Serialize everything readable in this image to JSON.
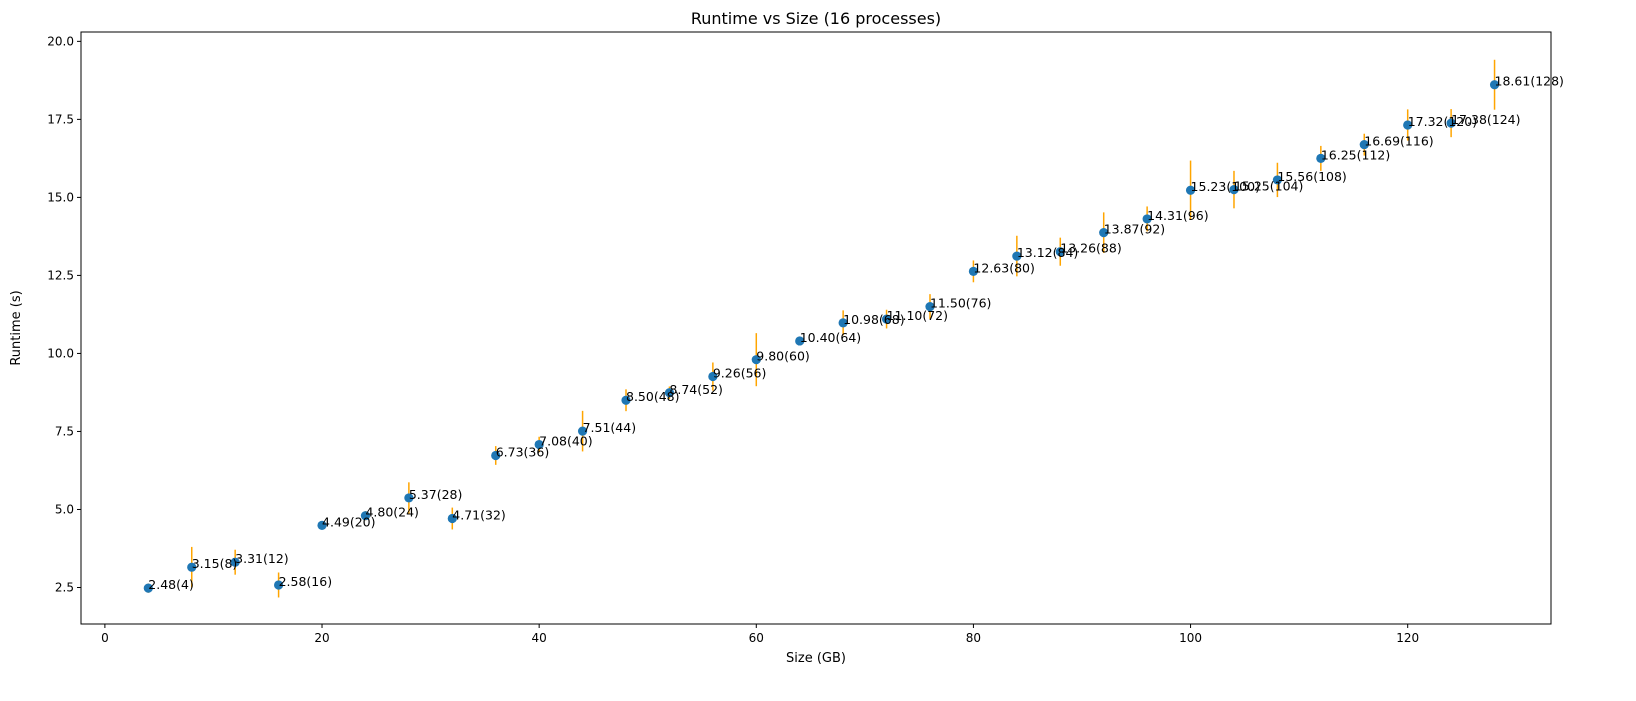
{
  "chart_data": {
    "type": "scatter",
    "title": "Runtime vs Size (16 processes)",
    "xlabel": "Size (GB)",
    "ylabel": "Runtime (s)",
    "xlim": [
      -2.2,
      133.2
    ],
    "ylim": [
      1.33,
      20.3
    ],
    "xticks": [
      0,
      20,
      40,
      60,
      80,
      100,
      120
    ],
    "yticks": [
      2.5,
      5.0,
      7.5,
      10.0,
      12.5,
      15.0,
      17.5,
      20.0
    ],
    "xtick_labels": [
      "0",
      "20",
      "40",
      "60",
      "80",
      "100",
      "120"
    ],
    "ytick_labels": [
      "2.5",
      "5.0",
      "7.5",
      "10.0",
      "12.5",
      "15.0",
      "17.5",
      "20.0"
    ],
    "grid": false,
    "marker_color": "#1f77b4",
    "errorbar_color": "#ffa500",
    "points": [
      {
        "x": 4,
        "y": 2.48,
        "err": 0.15,
        "label": "2.48(4)"
      },
      {
        "x": 8,
        "y": 3.15,
        "err": 0.65,
        "label": "3.15(8)"
      },
      {
        "x": 12,
        "y": 3.31,
        "err": 0.4,
        "label": "3.31(12)"
      },
      {
        "x": 16,
        "y": 2.58,
        "err": 0.4,
        "label": "2.58(16)"
      },
      {
        "x": 20,
        "y": 4.49,
        "err": 0.1,
        "label": "4.49(20)"
      },
      {
        "x": 24,
        "y": 4.8,
        "err": 0.15,
        "label": "4.80(24)"
      },
      {
        "x": 28,
        "y": 5.37,
        "err": 0.5,
        "label": "5.37(28)"
      },
      {
        "x": 32,
        "y": 4.71,
        "err": 0.35,
        "label": "4.71(32)"
      },
      {
        "x": 36,
        "y": 6.73,
        "err": 0.3,
        "label": "6.73(36)"
      },
      {
        "x": 40,
        "y": 7.08,
        "err": 0.25,
        "label": "7.08(40)"
      },
      {
        "x": 44,
        "y": 7.51,
        "err": 0.65,
        "label": "7.51(44)"
      },
      {
        "x": 48,
        "y": 8.5,
        "err": 0.35,
        "label": "8.50(48)"
      },
      {
        "x": 52,
        "y": 8.74,
        "err": 0.2,
        "label": "8.74(52)"
      },
      {
        "x": 56,
        "y": 9.26,
        "err": 0.45,
        "label": "9.26(56)"
      },
      {
        "x": 60,
        "y": 9.8,
        "err": 0.85,
        "label": "9.80(60)"
      },
      {
        "x": 64,
        "y": 10.4,
        "err": 0.1,
        "label": "10.40(64)"
      },
      {
        "x": 68,
        "y": 10.98,
        "err": 0.4,
        "label": "10.98(68)"
      },
      {
        "x": 72,
        "y": 11.1,
        "err": 0.3,
        "label": "11.10(72)"
      },
      {
        "x": 76,
        "y": 11.5,
        "err": 0.4,
        "label": "11.50(76)"
      },
      {
        "x": 80,
        "y": 12.63,
        "err": 0.35,
        "label": "12.63(80)"
      },
      {
        "x": 84,
        "y": 13.12,
        "err": 0.65,
        "label": "13.12(84)"
      },
      {
        "x": 88,
        "y": 13.26,
        "err": 0.45,
        "label": "13.26(88)"
      },
      {
        "x": 92,
        "y": 13.87,
        "err": 0.65,
        "label": "13.87(92)"
      },
      {
        "x": 96,
        "y": 14.31,
        "err": 0.4,
        "label": "14.31(96)"
      },
      {
        "x": 100,
        "y": 15.23,
        "err": 0.95,
        "label": "15.23(100)"
      },
      {
        "x": 104,
        "y": 15.25,
        "err": 0.6,
        "label": "15.25(104)"
      },
      {
        "x": 108,
        "y": 15.56,
        "err": 0.55,
        "label": "15.56(108)"
      },
      {
        "x": 112,
        "y": 16.25,
        "err": 0.4,
        "label": "16.25(112)"
      },
      {
        "x": 116,
        "y": 16.69,
        "err": 0.35,
        "label": "16.69(116)"
      },
      {
        "x": 120,
        "y": 17.32,
        "err": 0.5,
        "label": "17.32(120)"
      },
      {
        "x": 124,
        "y": 17.38,
        "err": 0.45,
        "label": "17.38(124)"
      },
      {
        "x": 128,
        "y": 18.61,
        "err": 0.8,
        "label": "18.61(128)"
      }
    ]
  }
}
